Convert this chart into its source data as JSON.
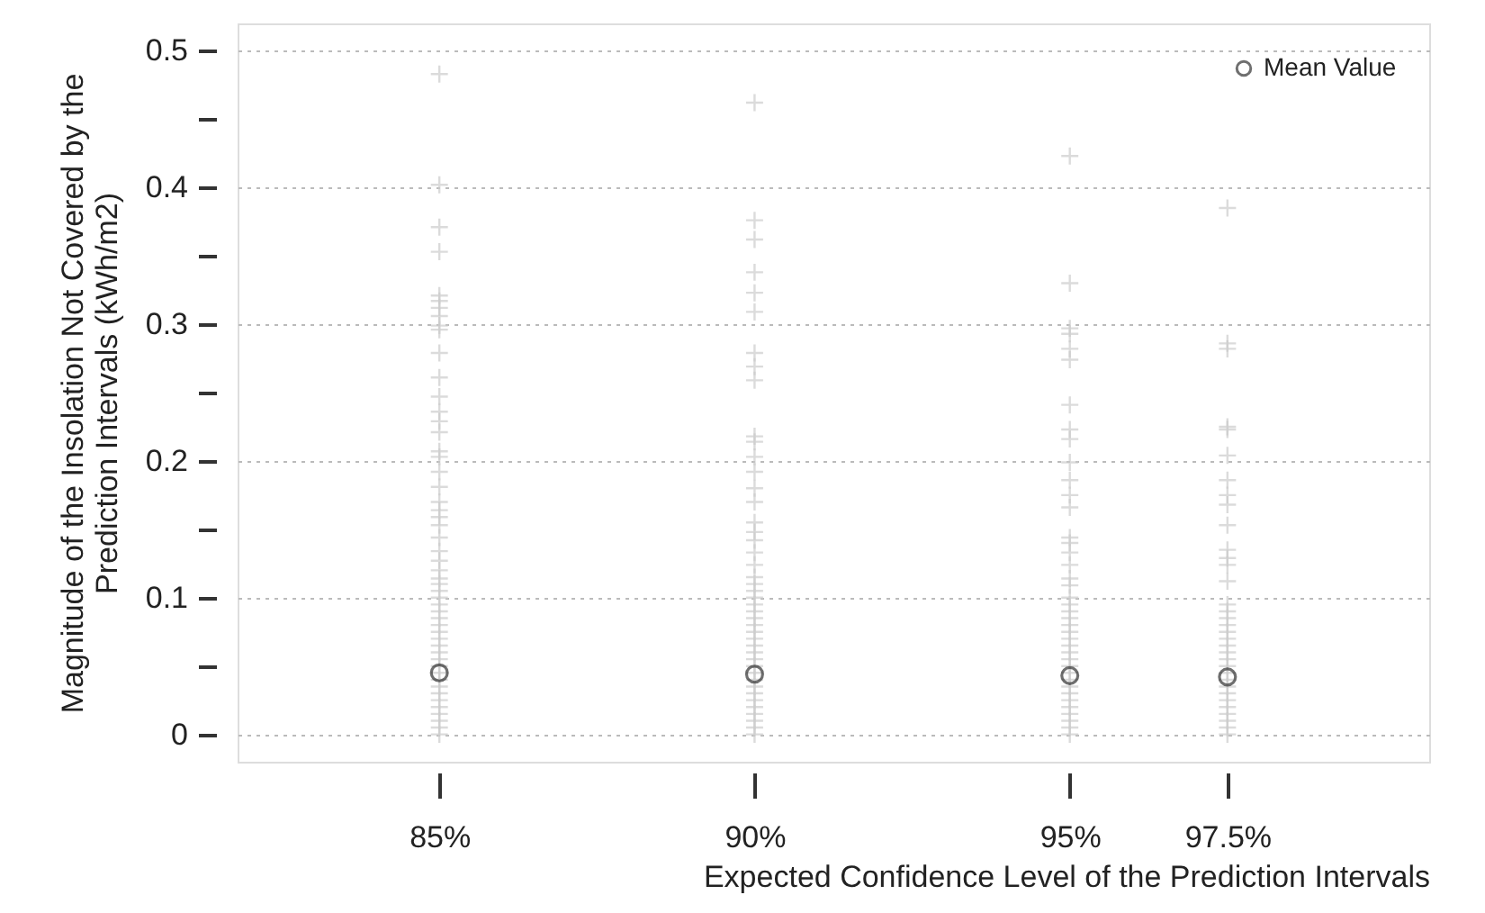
{
  "chart_data": {
    "type": "scatter",
    "xlabel": "Expected Confidence Level of the Prediction Intervals",
    "ylabel": "Magnitude of the Insolation Not Covered by the\nPrediction Intervals (kWh/m2)",
    "xlim": [
      81.8,
      100.7
    ],
    "ylim": [
      -0.02,
      0.52
    ],
    "xticks": [
      {
        "value": 85,
        "label": "85%"
      },
      {
        "value": 90,
        "label": "90%"
      },
      {
        "value": 95,
        "label": "95%"
      },
      {
        "value": 97.5,
        "label": "97.5%"
      }
    ],
    "yticks": [
      0,
      {
        "value": 0.05,
        "label": null
      },
      0.1,
      {
        "value": 0.15,
        "label": null
      },
      0.2,
      {
        "value": 0.25,
        "label": null
      },
      0.3,
      {
        "value": 0.35,
        "label": null
      },
      0.4,
      {
        "value": 0.45,
        "label": null
      },
      0.5
    ],
    "grid": "y",
    "legend": "top right",
    "series": [
      {
        "color": "#cccccc",
        "marker": "cross",
        "x": [
          85,
          85,
          85,
          85,
          85,
          85,
          85,
          85,
          85,
          85,
          85,
          85,
          85,
          85,
          85,
          85,
          85,
          85,
          85,
          85,
          85,
          85,
          85,
          85,
          85,
          85,
          85,
          85,
          85,
          85,
          85,
          85,
          85,
          85,
          85,
          85,
          85,
          85,
          85,
          85,
          85,
          85,
          85,
          85,
          85,
          85,
          85,
          85,
          85,
          85,
          85,
          85,
          90,
          90,
          90,
          90,
          90,
          90,
          90,
          90,
          90,
          90,
          90,
          90,
          90,
          90,
          90,
          90,
          90,
          90,
          90,
          90,
          90,
          90,
          90,
          90,
          90,
          90,
          90,
          90,
          90,
          90,
          90,
          90,
          90,
          90,
          90,
          90,
          90,
          90,
          90,
          90,
          90,
          90,
          90,
          90,
          95,
          95,
          95,
          95,
          95,
          95,
          95,
          95,
          95,
          95,
          95,
          95,
          95,
          95,
          95,
          95,
          95,
          95,
          95,
          95,
          95,
          95,
          95,
          95,
          95,
          95,
          95,
          95,
          95,
          95,
          95,
          95,
          95,
          95,
          95,
          95,
          95,
          95,
          95,
          95,
          97.5,
          97.5,
          97.5,
          97.5,
          97.5,
          97.5,
          97.5,
          97.5,
          97.5,
          97.5,
          97.5,
          97.5,
          97.5,
          97.5,
          97.5,
          97.5,
          97.5,
          97.5,
          97.5,
          97.5,
          97.5,
          97.5,
          97.5,
          97.5,
          97.5,
          97.5,
          97.5,
          97.5,
          97.5,
          97.5,
          97.5,
          97.5,
          97.5,
          97.5
        ],
        "values": [
          0.483,
          0.402,
          0.371,
          0.353,
          0.321,
          0.317,
          0.312,
          0.306,
          0.299,
          0.296,
          0.279,
          0.261,
          0.247,
          0.236,
          0.229,
          0.221,
          0.207,
          0.203,
          0.192,
          0.181,
          0.17,
          0.164,
          0.159,
          0.153,
          0.144,
          0.134,
          0.127,
          0.12,
          0.114,
          0,
          0.005,
          0.01,
          0.015,
          0.02,
          0.025,
          0.03,
          0.035,
          0.04,
          0.045,
          0.05,
          0.055,
          0.06,
          0.065,
          0.07,
          0.075,
          0.08,
          0.085,
          0.09,
          0.095,
          0.1,
          0.105,
          0.11,
          0.462,
          0.376,
          0.362,
          0.338,
          0.323,
          0.309,
          0.279,
          0.269,
          0.259,
          0.218,
          0.214,
          0.203,
          0.192,
          0.18,
          0.17,
          0.155,
          0.148,
          0.142,
          0.133,
          0.124,
          0,
          0.005,
          0.01,
          0.015,
          0.02,
          0.025,
          0.03,
          0.035,
          0.04,
          0.045,
          0.05,
          0.055,
          0.06,
          0.065,
          0.07,
          0.075,
          0.08,
          0.085,
          0.09,
          0.095,
          0.1,
          0.105,
          0.11,
          0.115,
          0.423,
          0.33,
          0.297,
          0.293,
          0.282,
          0.274,
          0.241,
          0.223,
          0.216,
          0.199,
          0.186,
          0.175,
          0.166,
          0.144,
          0.14,
          0.133,
          0.124,
          0.114,
          0.109,
          0,
          0.005,
          0.01,
          0.015,
          0.02,
          0.025,
          0.03,
          0.035,
          0.04,
          0.045,
          0.05,
          0.055,
          0.06,
          0.065,
          0.07,
          0.075,
          0.08,
          0.085,
          0.09,
          0.095,
          0.1,
          0.385,
          0.286,
          0.282,
          0.225,
          0.223,
          0.204,
          0.186,
          0.175,
          0.168,
          0.153,
          0.135,
          0.129,
          0.124,
          0.112,
          0,
          0.005,
          0.01,
          0.015,
          0.02,
          0.025,
          0.03,
          0.035,
          0.04,
          0.045,
          0.05,
          0.055,
          0.06,
          0.065,
          0.07,
          0.075,
          0.08,
          0.085,
          0.09,
          0.095
        ]
      },
      {
        "name": "Mean Value",
        "color": "#333333",
        "marker": "circle",
        "x": [
          85,
          90,
          95,
          97.5
        ],
        "values": [
          0.045,
          0.044,
          0.043,
          0.042
        ]
      }
    ]
  }
}
